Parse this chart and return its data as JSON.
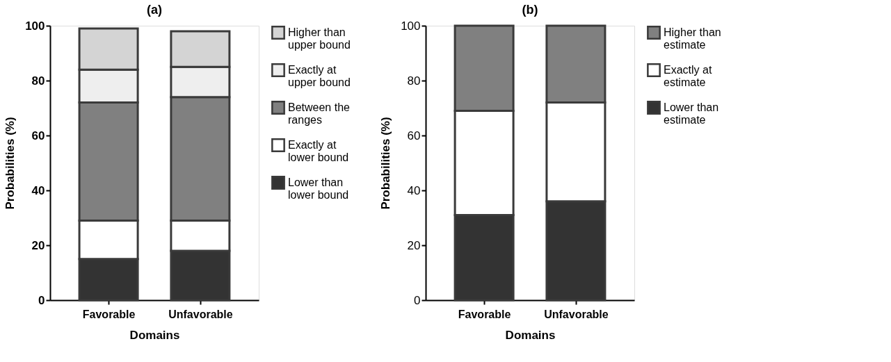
{
  "chart_data": [
    {
      "type": "bar",
      "title": "(a)",
      "xlabel": "Domains",
      "ylabel": "Probabilities (%)",
      "categories": [
        "Favorable",
        "Unfavorable"
      ],
      "stacked": true,
      "ylim": [
        0,
        100
      ],
      "yticks": [
        0,
        20,
        40,
        60,
        80,
        100
      ],
      "grid": false,
      "legend": "right",
      "series": [
        {
          "name": "Lower than lower bound",
          "color": "#333333",
          "values": [
            15,
            18
          ]
        },
        {
          "name": "Exactly at lower bound",
          "color": "#ffffff",
          "values": [
            14,
            11
          ]
        },
        {
          "name": "Between the ranges",
          "color": "#808080",
          "values": [
            43,
            45
          ]
        },
        {
          "name": "Exactly at upper bound",
          "color": "#eeeeee",
          "values": [
            12,
            11
          ]
        },
        {
          "name": "Higher than upper bound",
          "color": "#d4d4d4",
          "values": [
            15,
            13
          ]
        }
      ]
    },
    {
      "type": "bar",
      "title": "(b)",
      "xlabel": "Domains",
      "ylabel": "Probabilities (%)",
      "categories": [
        "Favorable",
        "Unfavorable"
      ],
      "stacked": true,
      "ylim": [
        0,
        100
      ],
      "yticks": [
        0,
        20,
        40,
        60,
        80,
        100
      ],
      "grid": false,
      "legend": "right",
      "series": [
        {
          "name": "Lower than estimate",
          "color": "#333333",
          "values": [
            31,
            36
          ]
        },
        {
          "name": "Exactly at estimate",
          "color": "#ffffff",
          "values": [
            38,
            36
          ]
        },
        {
          "name": "Higher than estimate",
          "color": "#808080",
          "values": [
            31,
            28
          ]
        }
      ]
    }
  ]
}
